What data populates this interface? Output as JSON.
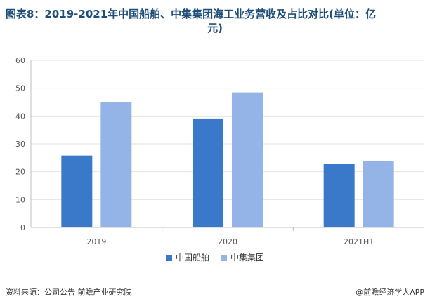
{
  "title_line1": "图表8：2019-2021年中国船舶、中集集团海工业务营收及占比对比(单位：亿",
  "title_line2": "元)",
  "source": "资料来源：公司公告 前瞻产业研究院",
  "brand": "@前瞻经济学人APP",
  "colors": {
    "series1": "#3a78c9",
    "series2": "#94b3e6",
    "axis": "#bfbfbf",
    "grid": "#e4e4e4",
    "text": "#555555"
  },
  "chart_data": {
    "type": "bar",
    "categories": [
      "2019",
      "2020",
      "2021H1"
    ],
    "series": [
      {
        "name": "中国船舶",
        "values": [
          25.8,
          39.1,
          22.8
        ]
      },
      {
        "name": "中集集团",
        "values": [
          45.0,
          48.5,
          23.7
        ]
      }
    ],
    "yticks": [
      0,
      10,
      20,
      30,
      40,
      50,
      60
    ],
    "ylim": [
      0,
      60
    ],
    "grid": true,
    "legend_position": "bottom-center"
  }
}
